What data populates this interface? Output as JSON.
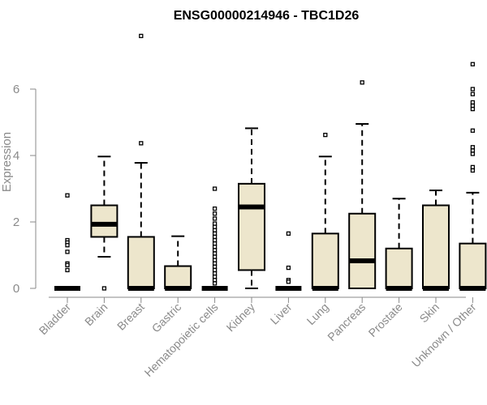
{
  "colors": {
    "box_fill": "#ede6cc",
    "box_stroke": "#000000",
    "axis": "#8a8a8a",
    "text": "#8a8a8a",
    "title": "#000000"
  },
  "chart_data": {
    "type": "boxplot",
    "title": "ENSG00000214946 - TBC1D26",
    "xlabel": "",
    "ylabel": "Expression",
    "ylim": [
      0,
      7.2
    ],
    "yticks": [
      0,
      2,
      4,
      6
    ],
    "grid": false,
    "legend": "none",
    "categories": [
      "Bladder",
      "Brain",
      "Breast",
      "Gastric",
      "Hematopoietic cells",
      "Kidney",
      "Liver",
      "Lung",
      "Pancreas",
      "Prostate",
      "Skin",
      "Unknown / Other"
    ],
    "boxes": [
      {
        "q1": 0,
        "median": 0,
        "q3": 0,
        "whisker_low": 0,
        "whisker_high": 0,
        "outliers": [
          2.8,
          1.45,
          1.38,
          1.3,
          1.1,
          0.75,
          0.7,
          0.55
        ]
      },
      {
        "q1": 1.55,
        "median": 1.93,
        "q3": 2.5,
        "whisker_low": 0.95,
        "whisker_high": 3.97,
        "outliers": [
          0
        ]
      },
      {
        "q1": 0,
        "median": 0,
        "q3": 1.55,
        "whisker_low": 0,
        "whisker_high": 3.78,
        "outliers": [
          7.6,
          4.37
        ]
      },
      {
        "q1": 0,
        "median": 0,
        "q3": 0.67,
        "whisker_low": 0,
        "whisker_high": 1.57,
        "outliers": []
      },
      {
        "q1": 0,
        "median": 0,
        "q3": 0,
        "whisker_low": 0,
        "whisker_high": 0,
        "outliers": [
          3.0,
          2.4,
          2.25,
          2.1,
          1.95,
          1.85,
          1.75,
          1.65,
          1.55,
          1.45,
          1.35,
          1.25,
          1.15,
          1.05,
          0.95,
          0.85,
          0.75,
          0.65,
          0.55,
          0.45,
          0.35,
          0.25,
          0.15
        ]
      },
      {
        "q1": 0.55,
        "median": 2.45,
        "q3": 3.15,
        "whisker_low": 0,
        "whisker_high": 4.82,
        "outliers": []
      },
      {
        "q1": 0,
        "median": 0,
        "q3": 0,
        "whisker_low": 0,
        "whisker_high": 0,
        "outliers": [
          1.65,
          0.62,
          0.25,
          0.2
        ]
      },
      {
        "q1": 0,
        "median": 0,
        "q3": 1.65,
        "whisker_low": 0,
        "whisker_high": 3.97,
        "outliers": [
          4.62
        ]
      },
      {
        "q1": 0,
        "median": 0.83,
        "q3": 2.25,
        "whisker_low": 0,
        "whisker_high": 4.95,
        "outliers": [
          6.2
        ]
      },
      {
        "q1": 0,
        "median": 0,
        "q3": 1.2,
        "whisker_low": 0,
        "whisker_high": 2.7,
        "outliers": []
      },
      {
        "q1": 0,
        "median": 0,
        "q3": 2.5,
        "whisker_low": 0,
        "whisker_high": 2.95,
        "outliers": []
      },
      {
        "q1": 0,
        "median": 0,
        "q3": 1.35,
        "whisker_low": 0,
        "whisker_high": 2.88,
        "outliers": [
          6.75,
          6.0,
          5.85,
          5.6,
          5.5,
          5.4,
          4.75,
          4.25,
          4.15,
          4.05,
          3.65,
          3.55
        ]
      }
    ]
  }
}
